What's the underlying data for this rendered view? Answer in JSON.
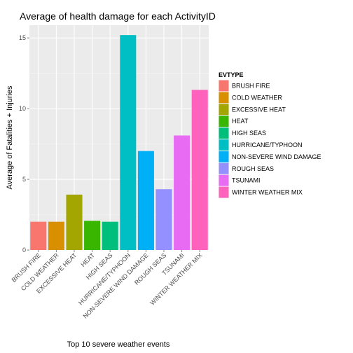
{
  "chart_data": {
    "type": "bar",
    "title": "Average of health damage for each ActivityID",
    "xlabel": "Top 10 severe weather events",
    "ylabel": "Average of Fatalities + Injuries",
    "categories": [
      "BRUSH FIRE",
      "COLD WEATHER",
      "EXCESSIVE HEAT",
      "HEAT",
      "HIGH SEAS",
      "HURRICANE/TYPHOON",
      "NON-SEVERE WIND DAMAGE",
      "ROUGH SEAS",
      "TSUNAMI",
      "WINTER WEATHER MIX"
    ],
    "values": [
      2.0,
      2.0,
      3.92,
      2.07,
      2.0,
      15.2,
      7.0,
      4.3,
      8.1,
      11.33
    ],
    "colors": [
      "#F8766D",
      "#D89000",
      "#A3A500",
      "#39B600",
      "#00BF7D",
      "#00BFC4",
      "#00B0F6",
      "#9590FF",
      "#E76BF3",
      "#FF62BC"
    ],
    "ylim": [
      0,
      15.9
    ],
    "yticks": [
      0,
      5,
      10,
      15
    ],
    "grid": true,
    "legend": {
      "title": "EVTYPE",
      "position": "right"
    }
  }
}
